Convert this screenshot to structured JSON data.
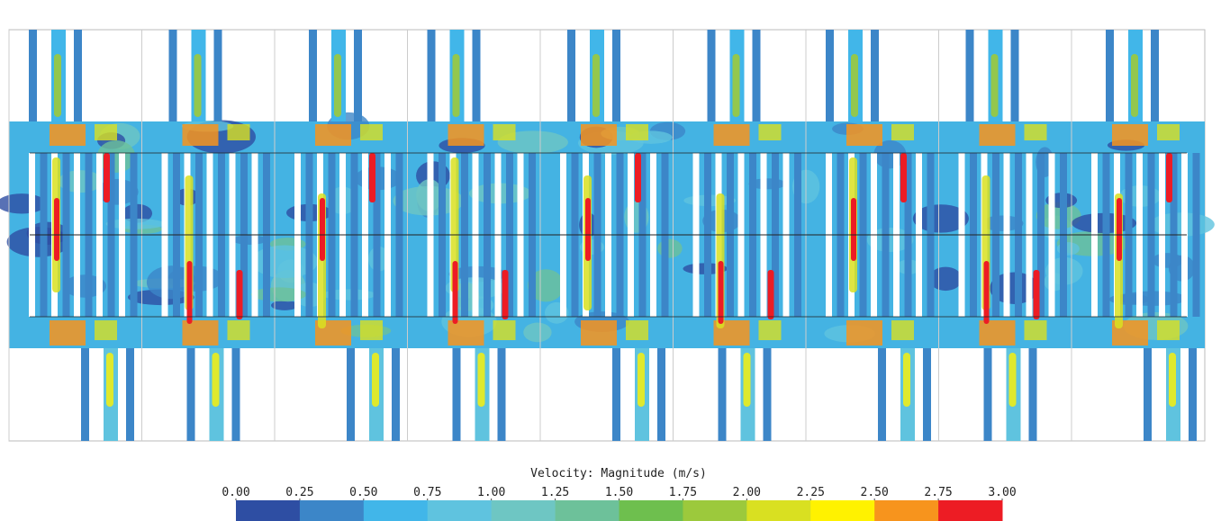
{
  "colorbar": {
    "title": "Velocity: Magnitude (m/s)",
    "ticks": [
      {
        "value": 0,
        "label": "0.00"
      },
      {
        "value": 0.25,
        "label": "0.25"
      },
      {
        "value": 0.5,
        "label": "0.50"
      },
      {
        "value": 0.75,
        "label": "0.75"
      },
      {
        "value": 1,
        "label": "1.00"
      },
      {
        "value": 1.25,
        "label": "1.25"
      },
      {
        "value": 1.5,
        "label": "1.50"
      },
      {
        "value": 1.75,
        "label": "1.75"
      },
      {
        "value": 2,
        "label": "2.00"
      },
      {
        "value": 2.25,
        "label": "2.25"
      },
      {
        "value": 2.5,
        "label": "2.50"
      },
      {
        "value": 2.75,
        "label": "2.75"
      },
      {
        "value": 3,
        "label": "3.00"
      }
    ],
    "colors": [
      "#2e4ea3",
      "#3c86c8",
      "#41b6e9",
      "#5fc3df",
      "#6ec6c3",
      "#6dc19a",
      "#6ebf4e",
      "#9cc93c",
      "#d9e021",
      "#fff200",
      "#f7941d",
      "#ed1c24"
    ]
  }
}
